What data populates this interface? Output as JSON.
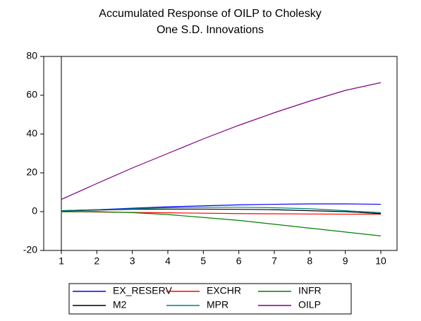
{
  "chart_data": {
    "type": "line",
    "title": "Accumulated Response of OILP to Cholesky",
    "subtitle": "One S.D. Innovations",
    "categories": [
      "1",
      "2",
      "3",
      "4",
      "5",
      "6",
      "7",
      "8",
      "9",
      "10"
    ],
    "series": [
      {
        "name": "EX_RESERV",
        "color": "#0000ff",
        "values": [
          0.5,
          1,
          1.8,
          2.5,
          3,
          3.5,
          3.8,
          4,
          4,
          3.8
        ]
      },
      {
        "name": "EXCHR",
        "color": "#ff0000",
        "values": [
          0,
          -0.2,
          -0.4,
          -0.6,
          -0.8,
          -1,
          -1.1,
          -1.2,
          -1.3,
          -1.3
        ]
      },
      {
        "name": "INFR",
        "color": "#008000",
        "values": [
          0,
          0,
          -0.5,
          -1.5,
          -3,
          -4.5,
          -6.5,
          -8.5,
          -10.5,
          -12.5
        ]
      },
      {
        "name": "M2",
        "color": "#000000",
        "values": [
          0.3,
          0.8,
          1.2,
          1.3,
          1.3,
          1.2,
          1,
          0.5,
          0,
          -1
        ]
      },
      {
        "name": "MPR",
        "color": "#008080",
        "values": [
          0.5,
          1,
          1.5,
          2,
          2.2,
          2.3,
          2,
          1.5,
          0.5,
          -0.5
        ]
      },
      {
        "name": "OILP",
        "color": "#800080",
        "values": [
          6.3,
          14.5,
          22.5,
          30,
          37.5,
          44.5,
          51,
          57,
          62.5,
          66.5
        ]
      }
    ],
    "ylim": [
      -20,
      80
    ],
    "yticks": [
      -20,
      0,
      20,
      40,
      60,
      80
    ],
    "grid": false,
    "legend": "bottom"
  }
}
